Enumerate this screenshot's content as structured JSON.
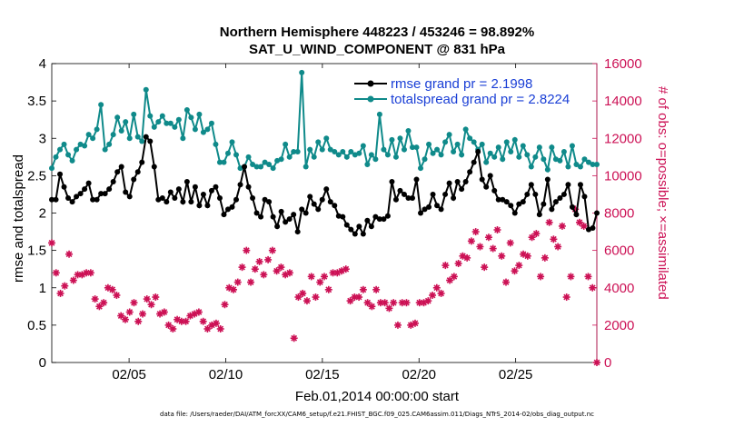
{
  "title_line1": "Northern Hemisphere 448223 / 453246 = 98.892%",
  "title_line2": "SAT_U_WIND_COMPONENT @ 831 hPa",
  "footer": "data file: /Users/raeder/DAI/ATM_forcXX/CAM6_setup/f.e21.FHIST_BGC.f09_025.CAM6assim.011/Diags_NTrS_2014-02/obs_diag_output.nc",
  "colors": {
    "rmse": "#000000",
    "spread": "#0f8a8a",
    "obs": "#cc1155",
    "legend_text": "#1a3fd6"
  },
  "chart_data": {
    "type": "line",
    "xlabel": "Feb.01,2014 00:00:00 start",
    "ylabel": "rmse and totalspread",
    "ylabel_right": "# of obs: o=possible; ×=assimilated",
    "xlim": [
      1,
      29.2
    ],
    "ylim": [
      0,
      4
    ],
    "ylim_right": [
      0,
      16000
    ],
    "xticks": [
      5,
      10,
      15,
      20,
      25
    ],
    "xtick_labels": [
      "02/05",
      "02/10",
      "02/15",
      "02/20",
      "02/25"
    ],
    "yticks": [
      "0",
      "0.5",
      "1",
      "1.5",
      "2",
      "2.5",
      "3",
      "3.5",
      "4"
    ],
    "yticks_right": [
      "0",
      "2000",
      "4000",
      "6000",
      "8000",
      "10000",
      "12000",
      "14000",
      "16000"
    ],
    "legend_position": "top-right",
    "grid": false,
    "series": [
      {
        "name": "rmse grand pr = 2.1998",
        "axis": "left",
        "values": [
          2.18,
          2.18,
          2.52,
          2.35,
          2.2,
          2.15,
          2.22,
          2.26,
          2.32,
          2.4,
          2.18,
          2.18,
          2.26,
          2.26,
          2.32,
          2.42,
          2.55,
          2.62,
          2.28,
          2.22,
          2.45,
          2.55,
          2.68,
          3.02,
          2.96,
          2.62,
          2.18,
          2.2,
          2.15,
          2.28,
          2.2,
          2.32,
          2.15,
          2.42,
          2.15,
          2.35,
          2.1,
          2.25,
          2.1,
          2.3,
          2.35,
          2.2,
          1.98,
          2.05,
          2.08,
          2.18,
          2.38,
          2.62,
          2.35,
          2.2,
          2.0,
          1.95,
          2.18,
          2.15,
          1.95,
          1.82,
          2.02,
          1.88,
          1.92,
          1.98,
          1.75,
          2.05,
          2.0,
          2.22,
          2.12,
          2.05,
          2.18,
          2.32,
          2.15,
          2.1,
          1.96,
          1.95,
          1.84,
          1.78,
          1.72,
          1.82,
          1.72,
          1.9,
          1.82,
          1.95,
          1.92,
          1.92,
          1.96,
          2.42,
          2.18,
          2.3,
          2.25,
          2.2,
          2.2,
          2.45,
          2.0,
          2.05,
          2.08,
          2.25,
          2.1,
          2.05,
          2.25,
          2.4,
          2.2,
          2.42,
          2.32,
          2.42,
          2.55,
          2.68,
          2.82,
          2.45,
          2.35,
          2.5,
          2.3,
          2.18,
          2.18,
          2.15,
          2.1,
          2.0,
          2.12,
          2.15,
          2.25,
          2.38,
          2.25,
          1.98,
          2.12,
          2.45,
          2.05,
          2.15,
          2.2,
          2.25,
          2.38,
          2.08,
          1.98,
          2.38,
          2.22,
          1.78,
          1.8,
          2.0
        ],
        "color": "#000000",
        "marker": "dot"
      },
      {
        "name": "totalspread grand pr = 2.8224",
        "axis": "left",
        "values": [
          2.6,
          2.75,
          2.85,
          2.92,
          2.78,
          2.7,
          2.85,
          2.92,
          2.9,
          3.05,
          3.0,
          3.12,
          3.45,
          2.85,
          2.92,
          3.05,
          3.28,
          3.1,
          3.22,
          3.0,
          3.32,
          3.02,
          2.96,
          3.65,
          3.3,
          3.15,
          3.22,
          3.3,
          3.2,
          3.2,
          3.15,
          3.25,
          3.0,
          3.38,
          3.28,
          3.12,
          3.32,
          3.08,
          3.12,
          3.2,
          2.92,
          2.68,
          2.68,
          2.8,
          2.95,
          2.78,
          2.6,
          2.62,
          2.75,
          2.65,
          2.62,
          2.62,
          2.68,
          2.65,
          2.6,
          2.7,
          2.72,
          2.92,
          2.75,
          2.82,
          2.82,
          3.88,
          2.62,
          2.85,
          2.75,
          2.95,
          2.85,
          3.0,
          2.85,
          2.82,
          2.78,
          2.82,
          2.75,
          2.82,
          2.78,
          2.8,
          2.9,
          2.65,
          2.78,
          2.72,
          3.32,
          2.85,
          2.78,
          2.98,
          2.75,
          3.0,
          2.85,
          3.1,
          2.88,
          2.88,
          2.6,
          2.72,
          2.92,
          2.8,
          2.85,
          2.78,
          2.95,
          3.05,
          2.82,
          2.92,
          2.78,
          3.12,
          3.0,
          2.95,
          2.85,
          2.92,
          2.68,
          2.8,
          2.75,
          2.88,
          2.72,
          2.95,
          2.82,
          2.98,
          2.75,
          2.9,
          2.78,
          2.62,
          2.75,
          2.88,
          2.72,
          2.58,
          2.88,
          2.72,
          2.7,
          2.82,
          2.62,
          2.9,
          2.65,
          2.62,
          2.72,
          2.68,
          2.65,
          2.65
        ],
        "color": "#0f8a8a",
        "marker": "dot"
      },
      {
        "name": "# of obs",
        "axis": "right",
        "values": [
          6400,
          4800,
          3700,
          4100,
          5800,
          4400,
          4700,
          4700,
          4800,
          4800,
          3400,
          3000,
          3200,
          4000,
          3900,
          3600,
          2500,
          2300,
          2700,
          3200,
          2200,
          2600,
          3400,
          3100,
          3500,
          2600,
          2700,
          2000,
          1800,
          2300,
          2200,
          2200,
          2500,
          2600,
          2700,
          2200,
          1800,
          2000,
          2100,
          1800,
          3100,
          4000,
          3900,
          4300,
          5100,
          6000,
          4300,
          5000,
          5400,
          4700,
          5500,
          6000,
          4900,
          5100,
          4700,
          4800,
          1300,
          3500,
          3700,
          3300,
          4600,
          3500,
          4300,
          4600,
          3900,
          4800,
          4800,
          4900,
          5000,
          3300,
          3500,
          3500,
          3900,
          3200,
          3000,
          3900,
          3200,
          3200,
          2900,
          3200,
          2000,
          3200,
          3200,
          2000,
          2100,
          3200,
          3200,
          3300,
          3600,
          4000,
          3700,
          5200,
          4400,
          4600,
          5300,
          5700,
          5600,
          6500,
          7000,
          6200,
          5100,
          6700,
          6100,
          7100,
          5700,
          4300,
          6400,
          4900,
          5200,
          5800,
          5700,
          6700,
          6900,
          4600,
          5600,
          7500,
          6600,
          6200,
          7300,
          3500,
          4600,
          8200,
          7500,
          7300,
          4600,
          4000,
          0
        ],
        "color": "#cc1155",
        "marker": "asterisk"
      }
    ]
  }
}
